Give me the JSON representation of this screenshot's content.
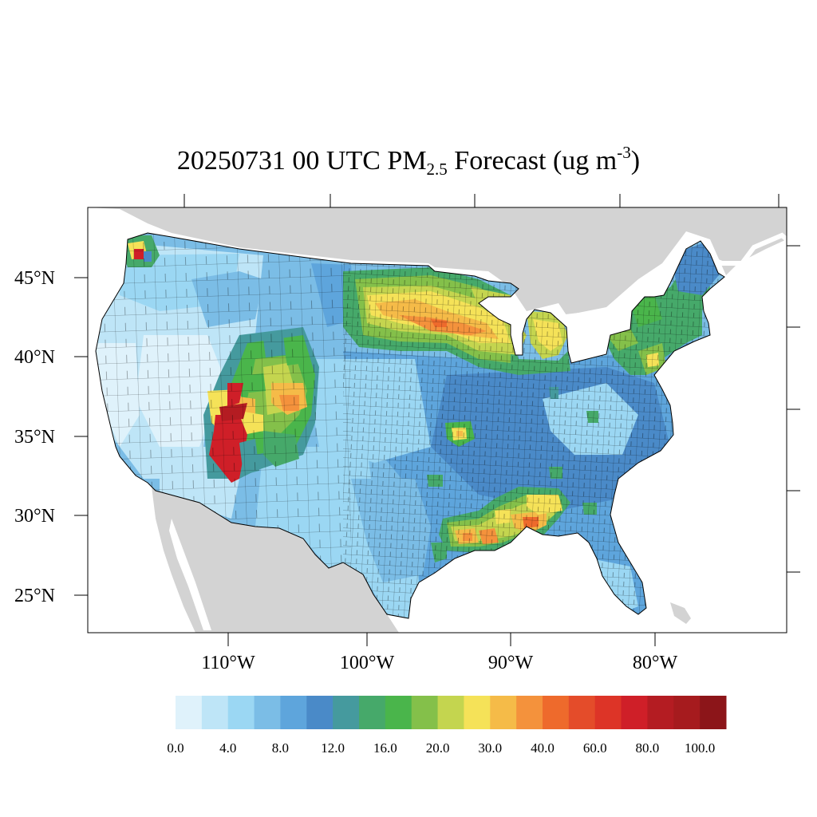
{
  "title": {
    "prefix": "20250731 00 UTC PM",
    "sub": "2.5",
    "middle": " Forecast (ug m",
    "sup": "-3",
    "suffix": ")"
  },
  "map": {
    "projection": "lambert-conformal-conus",
    "variable": "PM2.5",
    "units": "ug m-3",
    "lat_labels": [
      "45°N",
      "40°N",
      "35°N",
      "30°N",
      "25°N"
    ],
    "lon_labels": [
      "110°W",
      "100°W",
      "90°W",
      "80°W"
    ],
    "colors": {
      "ocean": "#ffffff",
      "land_outside": "#d3d3d3",
      "county_lines": "#000000"
    },
    "hotspots": [
      {
        "region": "western Washington (Seattle)",
        "level": "60-100"
      },
      {
        "region": "southwestern Colorado / northwestern New Mexico",
        "level": "80-100"
      },
      {
        "region": "western Colorado",
        "level": "20-60"
      },
      {
        "region": "Minnesota / Wisconsin / North Dakota",
        "level": "16-60"
      },
      {
        "region": "Upper Michigan and northern Great Lakes",
        "level": "20-40"
      },
      {
        "region": "northeastern Oklahoma",
        "level": "20-40"
      },
      {
        "region": "Louisiana / Mississippi / Alabama",
        "level": "20-60"
      },
      {
        "region": "Pennsylvania / New York",
        "level": "12-30"
      }
    ]
  },
  "colorbar": {
    "labels": [
      "0.0",
      "4.0",
      "8.0",
      "12.0",
      "16.0",
      "20.0",
      "30.0",
      "40.0",
      "60.0",
      "80.0",
      "100.0"
    ],
    "colors": [
      "#dff2fb",
      "#bee5f7",
      "#9bd7f3",
      "#7bbde6",
      "#5ea5dc",
      "#4a8ac8",
      "#459a9e",
      "#46a96a",
      "#4ab54b",
      "#84c04a",
      "#c4d54f",
      "#f5e258",
      "#f5bb48",
      "#f4923c",
      "#ee6a2c",
      "#e44c2a",
      "#dd3427",
      "#cf1f28",
      "#b41c22",
      "#a61b1e",
      "#8c1519"
    ]
  }
}
